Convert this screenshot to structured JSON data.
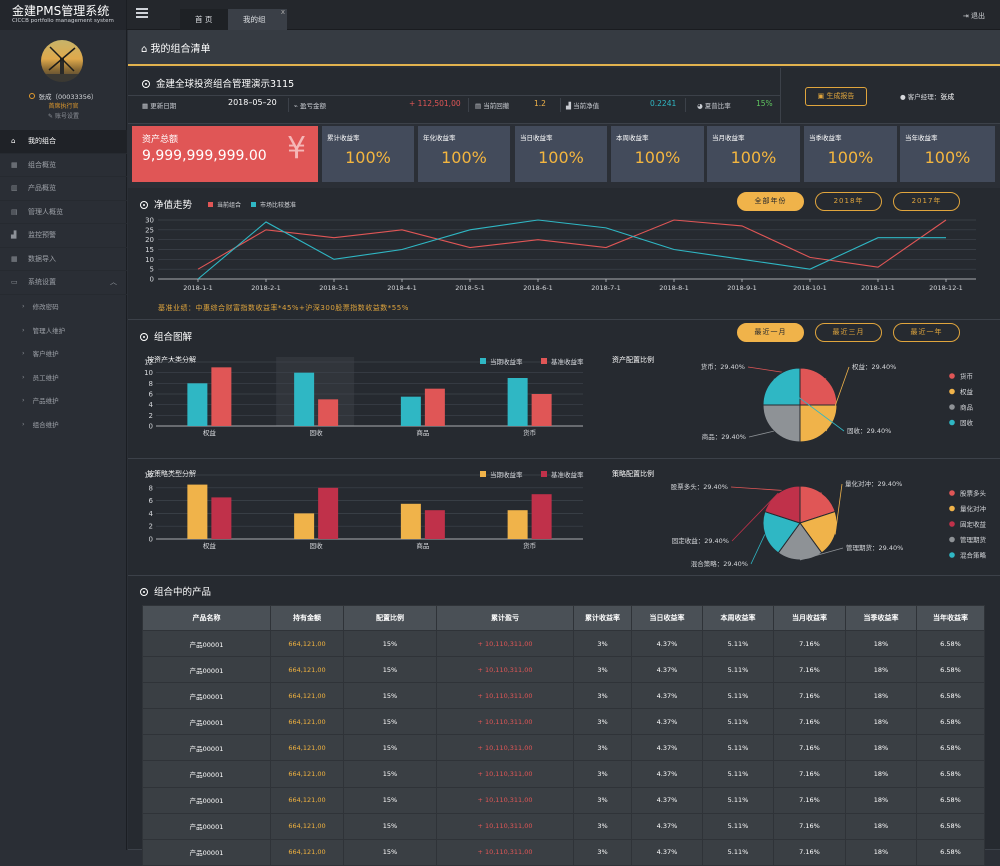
{
  "app": {
    "title": "金建PMS管理系统",
    "subtitle": "CICCB portfolio management system"
  },
  "user": {
    "name": "张成（00033356）",
    "role": "首席执行官",
    "settings": "账号设置"
  },
  "nav": {
    "items": [
      "我的组合",
      "组合概览",
      "产品概览",
      "管理人概览",
      "监控预警",
      "数据导入",
      "系统设置"
    ],
    "sub": [
      "修改密码",
      "管理人维护",
      "客户维护",
      "员工维护",
      "产品维护",
      "组合维护"
    ]
  },
  "topbar": {
    "tabs": [
      "首 页",
      "我的组合"
    ],
    "close": "x",
    "logout": "退出"
  },
  "page": {
    "title": "我的组合清单"
  },
  "portfolio": {
    "name": "金建全球投资组合管理演示3115",
    "update_label": "更新日期",
    "update_value": "2018–05–20",
    "pnl_label": "盈亏金额",
    "pnl_value": "+ 112,501,00",
    "drawdown_label": "当前回撤",
    "drawdown_value": "1.2",
    "nav_label": "当前净值",
    "nav_value": "0.2241",
    "sharpe_label": "夏普比率",
    "sharpe_value": "15%",
    "report_btn": "生成报告",
    "manager_label": "客户经理：",
    "manager_name": "张成"
  },
  "kpis": {
    "total_label": "资产总额",
    "total_value": "9,999,999,999.00",
    "yen": "¥",
    "cards": [
      {
        "label": "累计收益率",
        "value": "100%"
      },
      {
        "label": "年化收益率",
        "value": "100%"
      },
      {
        "label": "当日收益率",
        "value": "100%"
      },
      {
        "label": "本周收益率",
        "value": "100%"
      },
      {
        "label": "当月收益率",
        "value": "100%"
      },
      {
        "label": "当季收益率",
        "value": "100%"
      },
      {
        "label": "当年收益率",
        "value": "100%"
      }
    ]
  },
  "nav_section": {
    "title": "净值走势",
    "legend": [
      "当前组合",
      "市场比较基准"
    ],
    "buttons": [
      "全部年份",
      "2018年",
      "2017年"
    ],
    "benchmark_note": "基准业绩：中惠综合财富指数收益率*45%+沪深300股票指数收益数*55%"
  },
  "colors": {
    "red": "#e05656",
    "cyan": "#2fb7c4",
    "orange": "#f0b34a",
    "gray": "#8e9296",
    "darkred": "#c0314a"
  },
  "chart_data": [
    {
      "type": "line",
      "x": [
        "2018-1-1",
        "2018-2-1",
        "2018-3-1",
        "2018-4-1",
        "2018-5-1",
        "2018-6-1",
        "2018-7-1",
        "2018-8-1",
        "2018-9-1",
        "2018-10-1",
        "2018-11-1",
        "2018-12-1"
      ],
      "ylim": [
        0,
        30
      ],
      "yticks": [
        0,
        5,
        10,
        15,
        20,
        25,
        30
      ],
      "series": [
        {
          "name": "当前组合",
          "color": "#e05656",
          "values": [
            5,
            25,
            21,
            25,
            16,
            20,
            16,
            30,
            27,
            11,
            6,
            30
          ]
        },
        {
          "name": "市场比较基准",
          "color": "#2fb7c4",
          "values": [
            0,
            29,
            10,
            15,
            25,
            30,
            26,
            15,
            10,
            5,
            21,
            21
          ]
        }
      ]
    },
    {
      "type": "bar",
      "title": "按资产大类分解",
      "categories": [
        "权益",
        "固收",
        "商品",
        "货币"
      ],
      "ylim": [
        0,
        12
      ],
      "yticks": [
        0,
        2,
        4,
        6,
        8,
        10,
        12
      ],
      "series": [
        {
          "name": "当期收益率",
          "color": "#2fb7c4",
          "values": [
            8,
            10,
            5.5,
            9
          ]
        },
        {
          "name": "基准收益率",
          "color": "#e05656",
          "values": [
            11,
            5,
            7,
            6
          ]
        }
      ]
    },
    {
      "type": "pie",
      "title": "资产配置比例",
      "slices": [
        {
          "label": "货币：29.40%",
          "name": "货币",
          "value": 29.4,
          "color": "#e05656"
        },
        {
          "label": "权益：29.40%",
          "name": "权益",
          "value": 29.4,
          "color": "#f0b34a"
        },
        {
          "label": "商品：29.40%",
          "name": "商品",
          "value": 29.4,
          "color": "#8e9296"
        },
        {
          "label": "固收：29.40%",
          "name": "固收",
          "value": 29.4,
          "color": "#2fb7c4"
        }
      ],
      "legend": [
        "货币",
        "权益",
        "商品",
        "固收"
      ]
    },
    {
      "type": "bar",
      "title": "按策略类型分解",
      "categories": [
        "权益",
        "固收",
        "商品",
        "货币"
      ],
      "ylim": [
        0,
        10
      ],
      "yticks": [
        0,
        2,
        4,
        6,
        8,
        10
      ],
      "series": [
        {
          "name": "当期收益率",
          "color": "#f0b34a",
          "values": [
            8.5,
            4,
            5.5,
            4.5
          ]
        },
        {
          "name": "基准收益率",
          "color": "#c0314a",
          "values": [
            6.5,
            8,
            4.5,
            7
          ]
        }
      ]
    },
    {
      "type": "pie",
      "title": "策略配置比例",
      "slices": [
        {
          "label": "股票多头：29.40%",
          "name": "股票多头",
          "value": 29.4,
          "color": "#e05656"
        },
        {
          "label": "量化对冲：29.40%",
          "name": "量化对冲",
          "value": 29.4,
          "color": "#f0b34a"
        },
        {
          "label": "管理期货：29.40%",
          "name": "管理期货",
          "value": 29.4,
          "color": "#8e9296"
        },
        {
          "label": "混合策略：29.40%",
          "name": "混合策略",
          "value": 29.4,
          "color": "#2fb7c4"
        },
        {
          "label": "固定收益：29.40%",
          "name": "固定收益",
          "value": 29.4,
          "color": "#c0314a"
        }
      ],
      "legend": [
        "股票多头",
        "量化对冲",
        "固定收益",
        "管理期货",
        "混合策略"
      ]
    }
  ],
  "combo_section": {
    "title": "组合图解",
    "buttons": [
      "最近一月",
      "最近三月",
      "最近一年"
    ]
  },
  "products": {
    "title": "组合中的产品",
    "columns": [
      "产品名称",
      "持有金额",
      "配置比例",
      "累计盈亏",
      "累计收益率",
      "当日收益率",
      "本周收益率",
      "当月收益率",
      "当季收益率",
      "当年收益率"
    ],
    "rows": [
      [
        "产品00001",
        "664,121,00",
        "15%",
        "+ 10,110,311,00",
        "3%",
        "4.37%",
        "5.11%",
        "7.16%",
        "18%",
        "6.58%"
      ],
      [
        "产品00001",
        "664,121,00",
        "15%",
        "+ 10,110,311,00",
        "3%",
        "4.37%",
        "5.11%",
        "7.16%",
        "18%",
        "6.58%"
      ],
      [
        "产品00001",
        "664,121,00",
        "15%",
        "+ 10,110,311,00",
        "3%",
        "4.37%",
        "5.11%",
        "7.16%",
        "18%",
        "6.58%"
      ],
      [
        "产品00001",
        "664,121,00",
        "15%",
        "+ 10,110,311,00",
        "3%",
        "4.37%",
        "5.11%",
        "7.16%",
        "18%",
        "6.58%"
      ],
      [
        "产品00001",
        "664,121,00",
        "15%",
        "+ 10,110,311,00",
        "3%",
        "4.37%",
        "5.11%",
        "7.16%",
        "18%",
        "6.58%"
      ],
      [
        "产品00001",
        "664,121,00",
        "15%",
        "+ 10,110,311,00",
        "3%",
        "4.37%",
        "5.11%",
        "7.16%",
        "18%",
        "6.58%"
      ],
      [
        "产品00001",
        "664,121,00",
        "15%",
        "+ 10,110,311,00",
        "3%",
        "4.37%",
        "5.11%",
        "7.16%",
        "18%",
        "6.58%"
      ],
      [
        "产品00001",
        "664,121,00",
        "15%",
        "+ 10,110,311,00",
        "3%",
        "4.37%",
        "5.11%",
        "7.16%",
        "18%",
        "6.58%"
      ],
      [
        "产品00001",
        "664,121,00",
        "15%",
        "+ 10,110,311,00",
        "3%",
        "4.37%",
        "5.11%",
        "7.16%",
        "18%",
        "6.58%"
      ]
    ]
  }
}
